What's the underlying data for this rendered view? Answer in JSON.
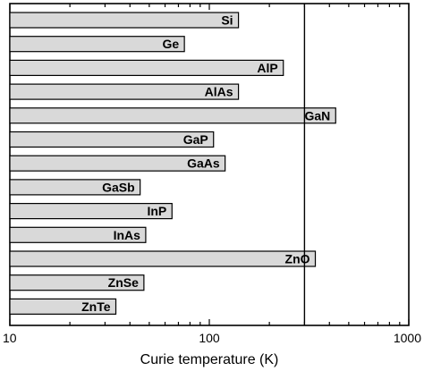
{
  "chart_data": {
    "type": "bar",
    "orientation": "horizontal",
    "categories": [
      "Si",
      "Ge",
      "AlP",
      "AlAs",
      "GaN",
      "GaP",
      "GaAs",
      "GaSb",
      "InP",
      "InAs",
      "ZnO",
      "ZnSe",
      "ZnTe"
    ],
    "values": [
      140,
      75,
      235,
      140,
      430,
      105,
      120,
      45,
      65,
      48,
      340,
      47,
      34
    ],
    "xlabel": "Curie temperature (K)",
    "ylabel": "",
    "x_scale": "log",
    "xlim": [
      10,
      1000
    ],
    "x_ticks": [
      "10",
      "100",
      "1000"
    ],
    "reference_line_x": 300,
    "bar_color": "#d9d9d9",
    "bar_edge_color": "#000000",
    "grid": false
  }
}
